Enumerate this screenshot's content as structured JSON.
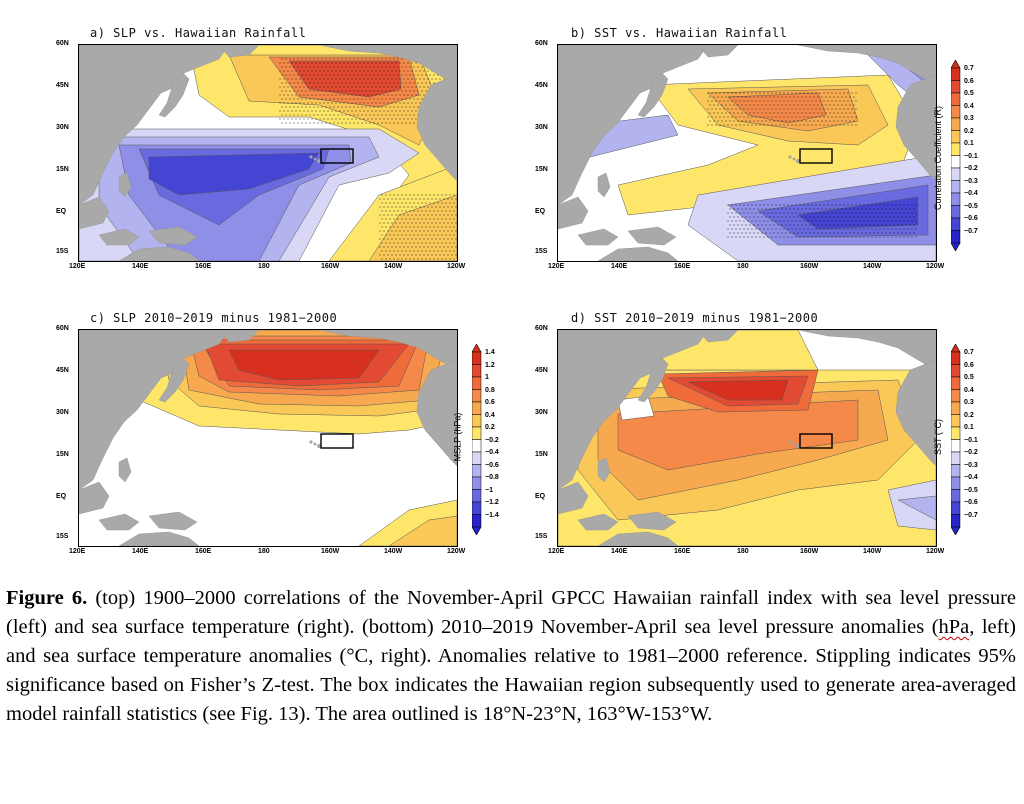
{
  "panels": [
    {
      "id": "a",
      "title": "a) SLP vs. Hawaiian Rainfall",
      "palette": "corr",
      "pattern": "slp_corr"
    },
    {
      "id": "b",
      "title": "b) SST vs. Hawaiian Rainfall",
      "palette": "corr",
      "pattern": "sst_corr"
    },
    {
      "id": "c",
      "title": "c) SLP 2010−2019 minus 1981−2000",
      "palette": "slp",
      "pattern": "slp_anom"
    },
    {
      "id": "d",
      "title": "d) SST 2010−2019 minus 1981−2000",
      "palette": "sst",
      "pattern": "sst_anom"
    }
  ],
  "lat_ticks": [
    "60N",
    "45N",
    "30N",
    "15N",
    "EQ",
    "15S"
  ],
  "lon_ticks": [
    "120E",
    "140E",
    "160E",
    "180",
    "160W",
    "140W",
    "120W"
  ],
  "colorbars": {
    "corr": {
      "title": "Correlation Coefficient (R)",
      "labels": [
        "0.7",
        "0.6",
        "0.5",
        "0.4",
        "0.3",
        "0.2",
        "0.1",
        "−0.1",
        "−0.2",
        "−0.3",
        "−0.4",
        "−0.5",
        "−0.6",
        "−0.7"
      ]
    },
    "slp": {
      "title": "MSLP (hPa)",
      "labels": [
        "1.4",
        "1.2",
        "1",
        "0.8",
        "0.6",
        "0.4",
        "0.2",
        "−0.2",
        "−0.4",
        "−0.6",
        "−0.8",
        "−1",
        "−1.2",
        "−1.4"
      ]
    },
    "sst": {
      "title": "SST (°C)",
      "labels": [
        "0.7",
        "0.6",
        "0.5",
        "0.4",
        "0.3",
        "0.2",
        "0.1",
        "−0.1",
        "−0.2",
        "−0.3",
        "−0.4",
        "−0.5",
        "−0.6",
        "−0.7"
      ]
    }
  },
  "palette_colors": [
    "#d7301f",
    "#e34a33",
    "#ef6c3a",
    "#f4894a",
    "#f7a94f",
    "#fac857",
    "#fde66a",
    "#ffffff",
    "#d8d8f6",
    "#b3b3ef",
    "#8f8fe8",
    "#6a6ae0",
    "#4545d4",
    "#2424c8"
  ],
  "hawaii_box": {
    "lat_min": 18,
    "lat_max": 23,
    "lon_min": "163W",
    "lon_max": "153W"
  },
  "caption": {
    "label": "Figure 6.",
    "part1": " (top) 1900–2000 correlations of the November-April GPCC Hawaiian rainfall index with sea level pressure (left) and sea surface temperature (right).   (bottom) 2010–2019 November-April sea level pressure anomalies (",
    "hpa": "hPa",
    "part2": ", left) and sea surface temperature anomalies (°C, right). Anomalies relative to 1981–2000 reference. Stippling indicates 95% significance based on Fisher’s Z-test.  The box indicates the Hawaiian region subsequently used to generate area-averaged model rainfall statistics (see Fig. 13). The area outlined is 18°N-23°N, 163°W-153°W."
  }
}
